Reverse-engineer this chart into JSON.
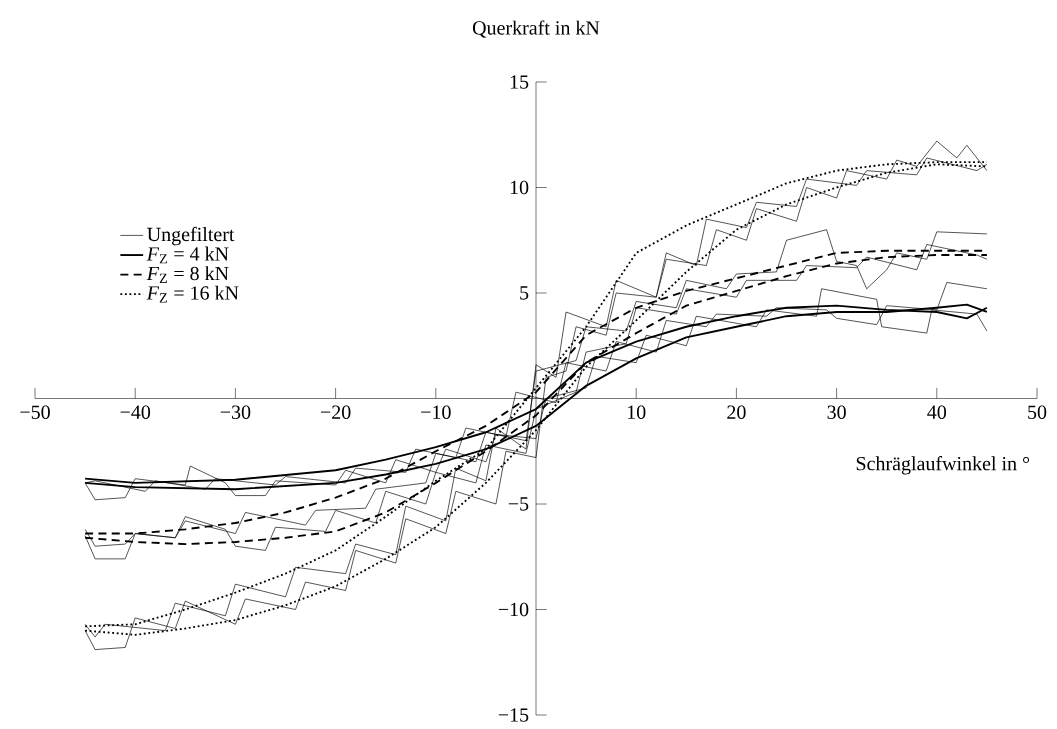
{
  "chart_data": {
    "type": "line",
    "xlabel": "Schräglaufwinkel in °",
    "ylabel": "Querkraft in kN",
    "xlim": [
      -50,
      50
    ],
    "ylim": [
      -15,
      15
    ],
    "xticks": [
      {
        "value": -50,
        "label": "−50"
      },
      {
        "value": -40,
        "label": "−40"
      },
      {
        "value": -30,
        "label": "−30"
      },
      {
        "value": -20,
        "label": "−20"
      },
      {
        "value": -10,
        "label": "−10"
      },
      10,
      20,
      30,
      40,
      50
    ],
    "yticks": [
      {
        "value": -15,
        "label": "−15"
      },
      {
        "value": -10,
        "label": "−10"
      },
      {
        "value": -5,
        "label": "−5"
      },
      5,
      10,
      15
    ],
    "legend": "top left",
    "series": [
      {
        "name": "Ungefiltert",
        "color": "#000000",
        "x": [
          -45,
          -44,
          -41,
          -40,
          -35,
          -34.5,
          -31,
          -30,
          -27,
          -26,
          -20,
          -19,
          -15,
          -14,
          -10,
          -9,
          -5,
          -4,
          0,
          1,
          5,
          6,
          10,
          11,
          15,
          16,
          22,
          23,
          28,
          28.5,
          34,
          34.5,
          39,
          39.5,
          44,
          45
        ],
        "values": [
          -4.0,
          -4.8,
          -4.7,
          -3.8,
          -4.1,
          -3.2,
          -4.0,
          -4.6,
          -4.6,
          -3.9,
          -4.1,
          -3.4,
          -4.0,
          -2.9,
          -3.5,
          -2.4,
          -3.0,
          -1.7,
          -1.9,
          0.0,
          0.5,
          2.0,
          1.7,
          3.0,
          2.5,
          3.9,
          3.4,
          4.2,
          3.9,
          5.2,
          4.7,
          3.4,
          3.1,
          4.2,
          4.0,
          3.2
        ]
      },
      {
        "color": "#000000",
        "x": [
          -45,
          -44,
          -39,
          -38,
          -33,
          -32,
          -26,
          -25,
          -19,
          -18,
          -13,
          -12,
          -8,
          -7,
          -3,
          -2,
          2,
          3,
          7,
          8,
          12,
          13,
          17,
          18,
          23,
          24,
          29,
          30,
          34,
          35,
          40,
          41,
          45
        ],
        "values": [
          -4.0,
          -3.9,
          -4.4,
          -3.9,
          -4.3,
          -3.8,
          -4.1,
          -3.7,
          -4.0,
          -3.3,
          -3.5,
          -2.4,
          -2.8,
          -1.4,
          -1.8,
          0.3,
          -0.2,
          1.7,
          1.3,
          2.7,
          2.2,
          3.7,
          3.4,
          4.0,
          3.9,
          4.3,
          4.2,
          3.8,
          3.5,
          4.4,
          4.2,
          5.5,
          5.2
        ]
      },
      {
        "color": "#000000",
        "x": [
          -45,
          -44,
          -41,
          -40,
          -36,
          -35,
          -31,
          -30,
          -27,
          -26,
          -21,
          -20,
          -16,
          -15,
          -11,
          -10,
          -6,
          -5,
          -1,
          0,
          4,
          5,
          9,
          10,
          14,
          15,
          20,
          21,
          26,
          27,
          32,
          33,
          38,
          39,
          44,
          45
        ],
        "values": [
          -6.5,
          -7.6,
          -7.6,
          -6.4,
          -6.6,
          -5.6,
          -6.2,
          -7.0,
          -7.2,
          -6.1,
          -6.3,
          -5.3,
          -5.9,
          -4.4,
          -5.0,
          -3.5,
          -4.0,
          -2.2,
          -2.6,
          -0.5,
          0.3,
          2.2,
          2.6,
          4.3,
          4.0,
          5.2,
          4.8,
          5.6,
          5.6,
          6.3,
          6.2,
          6.7,
          6.1,
          7.3,
          6.8,
          6.6
        ]
      },
      {
        "color": "#000000",
        "x": [
          -45,
          -44,
          -41,
          -40,
          -36,
          -35,
          -30,
          -29,
          -23,
          -22,
          -17,
          -16,
          -11,
          -10,
          -6,
          -5,
          -1,
          0,
          4,
          5,
          9,
          10,
          14,
          15,
          19,
          20,
          24,
          25,
          29,
          30,
          32,
          33,
          35,
          36,
          39,
          40,
          45
        ],
        "values": [
          -6.2,
          -7.0,
          -6.9,
          -6.4,
          -6.6,
          -5.8,
          -6.4,
          -5.4,
          -6.0,
          -5.3,
          -5.2,
          -4.3,
          -4.0,
          -2.6,
          -3.0,
          -1.6,
          -2.0,
          1.3,
          1.8,
          3.4,
          3.2,
          4.6,
          4.3,
          5.6,
          5.2,
          5.9,
          6.0,
          7.5,
          8.0,
          6.5,
          6.3,
          5.2,
          6.1,
          6.9,
          6.6,
          7.9,
          7.8
        ]
      },
      {
        "color": "#000000",
        "x": [
          -45,
          -44,
          -41,
          -40,
          -36,
          -35,
          -30,
          -29,
          -24,
          -23,
          -19,
          -18,
          -14,
          -13,
          -9,
          -8,
          -4,
          -3,
          0,
          1,
          3,
          4,
          7,
          8,
          12,
          13,
          16,
          17,
          21,
          22,
          26,
          27,
          32,
          33,
          38,
          39,
          44,
          45
        ],
        "values": [
          -11.0,
          -11.9,
          -11.8,
          -10.4,
          -10.9,
          -9.6,
          -10.7,
          -9.5,
          -10.0,
          -8.7,
          -9.1,
          -7.2,
          -7.8,
          -5.7,
          -6.4,
          -4.4,
          -5.0,
          -2.5,
          -2.8,
          1.0,
          1.3,
          3.4,
          3.0,
          5.0,
          4.8,
          6.9,
          6.3,
          8.5,
          8.1,
          9.3,
          9.1,
          10.4,
          10.1,
          10.8,
          10.6,
          11.4,
          10.8,
          11.1
        ]
      },
      {
        "color": "#000000",
        "x": [
          -45,
          -44,
          -43,
          -37,
          -36,
          -31,
          -30,
          -25,
          -24,
          -19,
          -18,
          -14,
          -13,
          -9,
          -8,
          -5,
          -4,
          -1,
          0,
          2,
          3,
          7,
          8,
          12,
          13,
          17,
          18,
          21,
          22,
          26,
          27,
          30,
          31,
          35,
          36,
          38,
          40,
          42,
          43,
          45
        ],
        "values": [
          -10.7,
          -11.3,
          -10.7,
          -11.0,
          -9.7,
          -10.3,
          -8.8,
          -9.4,
          -8.0,
          -8.3,
          -6.9,
          -7.4,
          -5.1,
          -5.8,
          -3.3,
          -3.9,
          -1.4,
          -2.4,
          1.6,
          1.0,
          4.1,
          3.4,
          5.6,
          4.8,
          6.6,
          6.3,
          8.0,
          7.5,
          9.0,
          8.4,
          10.0,
          9.5,
          10.8,
          10.4,
          11.3,
          11.0,
          12.2,
          11.4,
          12.0,
          10.8
        ]
      },
      {
        "name": "*F*$_{Z}$ = 4 kN",
        "color": "#000000",
        "line_style": "solid",
        "x": [
          -45,
          -40,
          -30,
          -20,
          -15,
          -10,
          -5,
          0,
          5,
          10,
          15,
          20,
          25,
          30,
          35,
          40,
          43,
          45
        ],
        "values": [
          -4.0,
          -4.2,
          -4.3,
          -4.0,
          -3.6,
          -3.1,
          -2.4,
          -1.3,
          0.6,
          1.9,
          2.9,
          3.4,
          3.9,
          4.1,
          4.1,
          4.3,
          4.45,
          4.1
        ]
      },
      {
        "color": "#000000",
        "line_style": "solid",
        "x": [
          -45,
          -40,
          -30,
          -20,
          -15,
          -10,
          -5,
          0,
          5,
          10,
          15,
          20,
          25,
          30,
          35,
          40,
          43,
          45
        ],
        "values": [
          -3.8,
          -4.0,
          -3.85,
          -3.4,
          -2.9,
          -2.3,
          -1.6,
          -0.5,
          1.7,
          2.7,
          3.4,
          3.9,
          4.3,
          4.4,
          4.2,
          4.1,
          3.8,
          4.3
        ]
      },
      {
        "name": "*F*$_{Z}$ = 8 kN",
        "color": "#000000",
        "line_style": "dashed",
        "x": [
          -45,
          -40,
          -35,
          -30,
          -25,
          -20,
          -15,
          -10,
          -5,
          0,
          5,
          10,
          15,
          20,
          25,
          30,
          35,
          40,
          45
        ],
        "values": [
          -6.6,
          -6.8,
          -6.9,
          -6.8,
          -6.6,
          -6.3,
          -5.4,
          -4.0,
          -2.5,
          -0.8,
          1.7,
          3.1,
          4.4,
          5.1,
          5.8,
          6.4,
          6.7,
          6.8,
          6.8
        ]
      },
      {
        "color": "#000000",
        "line_style": "dashed",
        "x": [
          -45,
          -40,
          -35,
          -30,
          -25,
          -20,
          -15,
          -10,
          -5,
          0,
          5,
          10,
          15,
          20,
          25,
          30,
          35,
          40,
          45
        ],
        "values": [
          -6.4,
          -6.4,
          -6.2,
          -5.9,
          -5.4,
          -4.7,
          -3.8,
          -2.5,
          -1.3,
          0.3,
          3.0,
          4.3,
          5.1,
          5.7,
          6.3,
          6.9,
          7.0,
          7.0,
          7.0
        ]
      },
      {
        "name": "*F*$_{Z}$ = 16 kN",
        "color": "#000000",
        "line_style": "dotted",
        "x": [
          -45,
          -40,
          -35,
          -30,
          -25,
          -20,
          -15,
          -10,
          -5,
          0,
          5,
          10,
          15,
          20,
          25,
          30,
          35,
          40,
          45
        ],
        "values": [
          -11.0,
          -11.2,
          -10.9,
          -10.5,
          -9.8,
          -8.9,
          -7.6,
          -6.1,
          -4.0,
          -1.5,
          1.5,
          3.7,
          6.0,
          8.0,
          9.2,
          10.0,
          10.7,
          11.1,
          11.0
        ]
      },
      {
        "color": "#000000",
        "line_style": "dotted",
        "x": [
          -45,
          -40,
          -35,
          -30,
          -25,
          -20,
          -15,
          -10,
          -5,
          0,
          5,
          10,
          15,
          20,
          25,
          30,
          35,
          40,
          45
        ],
        "values": [
          -10.8,
          -10.7,
          -10.0,
          -9.2,
          -8.3,
          -7.2,
          -5.6,
          -3.9,
          -2.4,
          0.5,
          3.4,
          6.9,
          8.2,
          9.2,
          10.2,
          10.8,
          11.1,
          11.2,
          11.2
        ]
      }
    ]
  }
}
